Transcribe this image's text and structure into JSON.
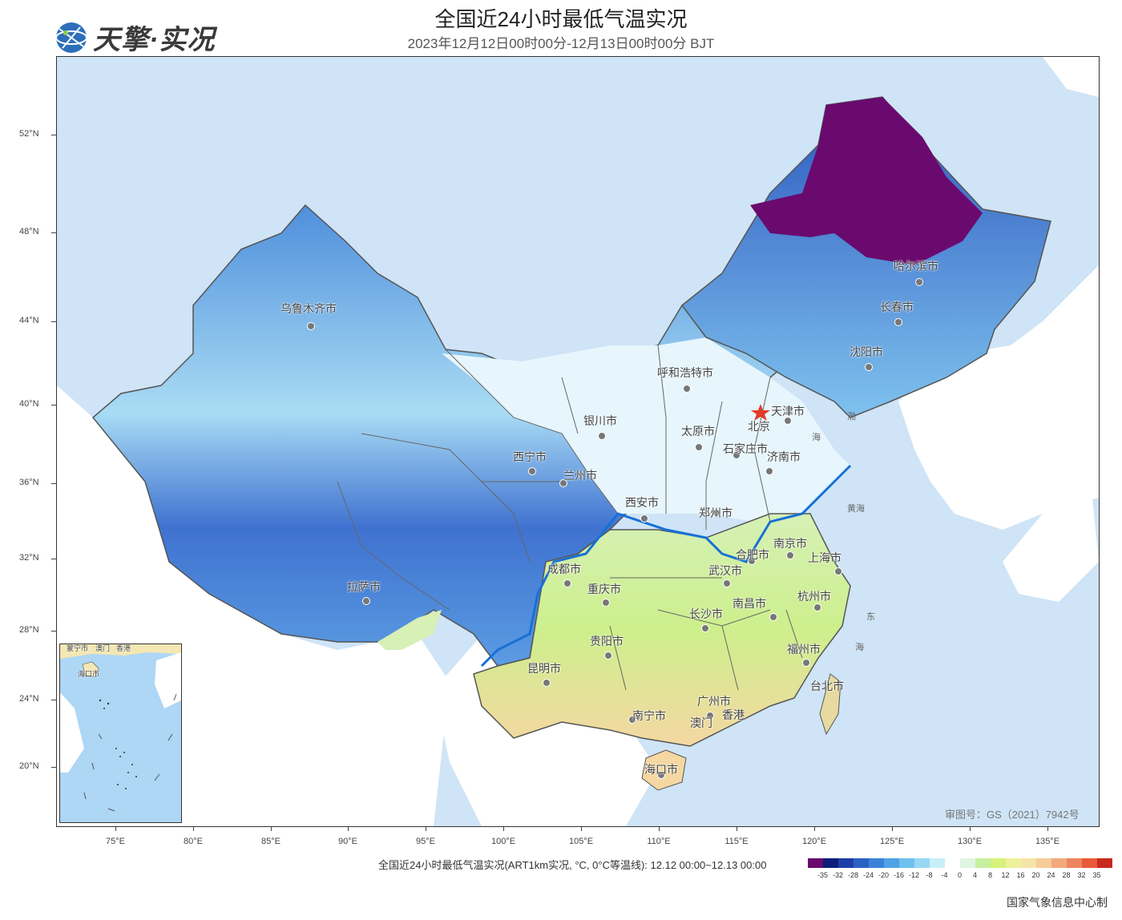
{
  "header": {
    "title": "全国近24小时最低气温实况",
    "subtitle": "2023年12月12日00时00分-12月13日00时00分 BJT",
    "logo_text": "天擎·实况"
  },
  "map": {
    "lat_ticks": [
      "52°N",
      "48°N",
      "44°N",
      "40°N",
      "36°N",
      "32°N",
      "28°N",
      "24°N",
      "20°N"
    ],
    "lon_ticks": [
      "75°E",
      "80°E",
      "85°E",
      "90°E",
      "95°E",
      "100°E",
      "105°E",
      "110°E",
      "115°E",
      "120°E",
      "125°E",
      "130°E",
      "135°E"
    ],
    "cities": [
      {
        "name": "哈尔滨市"
      },
      {
        "name": "长春市"
      },
      {
        "name": "沈阳市"
      },
      {
        "name": "乌鲁木齐市"
      },
      {
        "name": "呼和浩特市"
      },
      {
        "name": "北京"
      },
      {
        "name": "天津市"
      },
      {
        "name": "银川市"
      },
      {
        "name": "太原市"
      },
      {
        "name": "石家庄市"
      },
      {
        "name": "济南市"
      },
      {
        "name": "西宁市"
      },
      {
        "name": "兰州市"
      },
      {
        "name": "西安市"
      },
      {
        "name": "郑州市"
      },
      {
        "name": "南京市"
      },
      {
        "name": "合肥市"
      },
      {
        "name": "上海市"
      },
      {
        "name": "成都市"
      },
      {
        "name": "武汉市"
      },
      {
        "name": "重庆市"
      },
      {
        "name": "杭州市"
      },
      {
        "name": "拉萨市"
      },
      {
        "name": "长沙市"
      },
      {
        "name": "南昌市"
      },
      {
        "name": "贵阳市"
      },
      {
        "name": "福州市"
      },
      {
        "name": "昆明市"
      },
      {
        "name": "台北市"
      },
      {
        "name": "南宁市"
      },
      {
        "name": "广州市"
      },
      {
        "name": "香港"
      },
      {
        "name": "澳门"
      },
      {
        "name": "海口市"
      }
    ],
    "seas": [
      "渤",
      "海",
      "黄海",
      "东",
      "海"
    ],
    "approval": "审图号：GS（2021）7942号",
    "inset_labels": [
      "蒙宁市",
      "澳门",
      "香港",
      "海口市"
    ]
  },
  "legend": {
    "caption": "全国近24小时最低气温实况(ART1km实况, °C, 0°C等温线): 12.12 00:00~12.13 00:00",
    "colors": [
      "#6a0a6e",
      "#0b1f7a",
      "#1b3fa6",
      "#2a62c4",
      "#3b82d6",
      "#4ea3e4",
      "#6dc0ee",
      "#96d8f2",
      "#c8eef8",
      "#ffffff",
      "#dff5e3",
      "#c6efa0",
      "#d7f27a",
      "#eef09a",
      "#f6e3a8",
      "#f6cc9a",
      "#f3a97c",
      "#ee845e",
      "#e85a3a",
      "#c82a1e"
    ],
    "labels": [
      "-35",
      "-32",
      "-28",
      "-24",
      "-20",
      "-16",
      "-12",
      "-8",
      "-4",
      "0",
      "4",
      "8",
      "12",
      "16",
      "20",
      "24",
      "28",
      "32",
      "35"
    ]
  },
  "footer": {
    "credit": "国家气象信息中心制"
  }
}
